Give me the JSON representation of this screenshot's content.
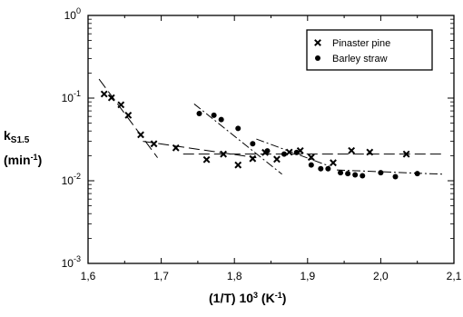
{
  "chart_data": {
    "type": "scatter",
    "xlabel": "(1/T) 10³ (K⁻¹)",
    "ylabel": "kS1.5 (min⁻¹)",
    "xlim": [
      1.6,
      2.1
    ],
    "ylim": [
      0.001,
      1
    ],
    "y_scale": "log",
    "x_ticks": [
      "1,6",
      "1,7",
      "1,8",
      "1,9",
      "2,0",
      "2,1"
    ],
    "y_ticks": [
      {
        "base": "10",
        "exp": "0",
        "value": 1
      },
      {
        "base": "10",
        "exp": "-1",
        "value": 0.1
      },
      {
        "base": "10",
        "exp": "-2",
        "value": 0.01
      },
      {
        "base": "10",
        "exp": "-3",
        "value": 0.001
      }
    ],
    "legend_position": "top-right",
    "series": [
      {
        "name": "Pinaster pine",
        "marker": "x",
        "points": [
          [
            1.622,
            0.112
          ],
          [
            1.632,
            0.101
          ],
          [
            1.645,
            0.083
          ],
          [
            1.655,
            0.062
          ],
          [
            1.672,
            0.036
          ],
          [
            1.69,
            0.028
          ],
          [
            1.72,
            0.025
          ],
          [
            1.762,
            0.018
          ],
          [
            1.785,
            0.021
          ],
          [
            1.805,
            0.0155
          ],
          [
            1.825,
            0.0185
          ],
          [
            1.842,
            0.022
          ],
          [
            1.858,
            0.0182
          ],
          [
            1.875,
            0.0222
          ],
          [
            1.89,
            0.0231
          ],
          [
            1.905,
            0.0192
          ],
          [
            1.935,
            0.0165
          ],
          [
            1.96,
            0.0232
          ],
          [
            1.985,
            0.0222
          ],
          [
            2.035,
            0.021
          ]
        ]
      },
      {
        "name": "Barley straw",
        "marker": "dot",
        "points": [
          [
            1.752,
            0.065
          ],
          [
            1.772,
            0.062
          ],
          [
            1.782,
            0.055
          ],
          [
            1.805,
            0.043
          ],
          [
            1.825,
            0.028
          ],
          [
            1.845,
            0.023
          ],
          [
            1.868,
            0.021
          ],
          [
            1.885,
            0.022
          ],
          [
            1.905,
            0.0155
          ],
          [
            1.918,
            0.014
          ],
          [
            1.928,
            0.014
          ],
          [
            1.945,
            0.0125
          ],
          [
            1.955,
            0.0122
          ],
          [
            1.965,
            0.0118
          ],
          [
            1.975,
            0.0115
          ],
          [
            2.0,
            0.0125
          ],
          [
            2.02,
            0.0112
          ],
          [
            2.05,
            0.0122
          ]
        ]
      }
    ],
    "fit_lines": [
      {
        "series": "Pinaster pine",
        "style": "long-dash",
        "from": [
          1.615,
          0.17
        ],
        "to": [
          1.695,
          0.019
        ]
      },
      {
        "series": "Pinaster pine",
        "style": "long-dash",
        "from": [
          1.675,
          0.03
        ],
        "to": [
          1.83,
          0.019
        ]
      },
      {
        "series": "Pinaster pine",
        "style": "long-dash",
        "from": [
          1.73,
          0.021
        ],
        "to": [
          2.085,
          0.021
        ]
      },
      {
        "series": "Barley straw",
        "style": "dash-dot",
        "from": [
          1.745,
          0.085
        ],
        "to": [
          1.865,
          0.012
        ]
      },
      {
        "series": "Barley straw",
        "style": "dash-dot",
        "from": [
          1.83,
          0.032
        ],
        "to": [
          1.93,
          0.015
        ]
      },
      {
        "series": "Barley straw",
        "style": "dash-dot",
        "from": [
          1.94,
          0.0135
        ],
        "to": [
          2.085,
          0.012
        ]
      }
    ]
  },
  "axis_text": {
    "ylabel_main": "k",
    "ylabel_sub": "S1.5",
    "ylabel_unit_open": "(min",
    "ylabel_unit_exp": "-1",
    "ylabel_unit_close": ")",
    "xlabel_main": "(1/T) 10",
    "xlabel_exp": "3",
    "xlabel_unit": " (K",
    "xlabel_unit_exp": "-1",
    "xlabel_close": ")"
  }
}
